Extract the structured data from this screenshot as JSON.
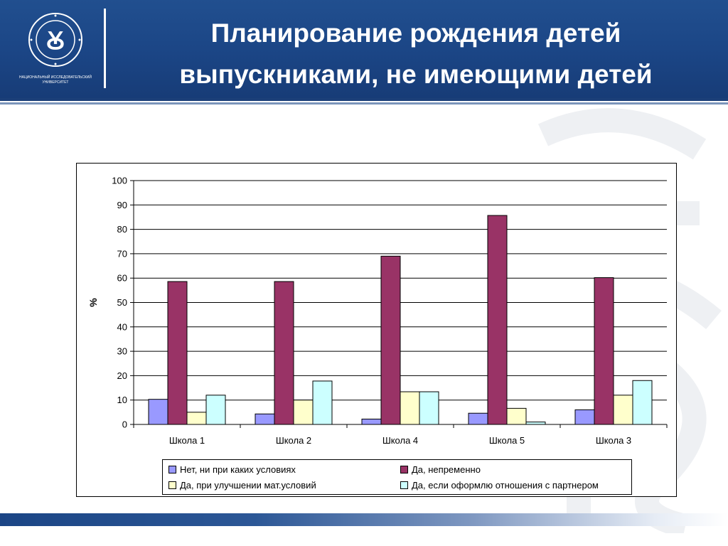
{
  "header": {
    "title_line1": "Планирование рождения детей",
    "title_line2": "выпускниками, не имеющими детей",
    "logo_caption_line1": "НАЦИОНАЛЬНЫЙ ИССЛЕДОВАТЕЛЬСКИЙ",
    "logo_caption_line2": "УНИВЕРСИТЕТ",
    "logo_ring_text": "ВЫСШАЯ ШКОЛА ЭКОНОМИКИ"
  },
  "colors": {
    "header_bg": "#1b4585",
    "series": [
      "#9999ff",
      "#993366",
      "#ffffcc",
      "#ccffff"
    ]
  },
  "chart_data": {
    "type": "bar",
    "title": "",
    "xlabel": "",
    "ylabel": "%",
    "ylim": [
      0,
      100
    ],
    "yticks": [
      0,
      10,
      20,
      30,
      40,
      50,
      60,
      70,
      80,
      90,
      100
    ],
    "grid": true,
    "categories": [
      "Школа 1",
      "Школа 2",
      "Школа 4",
      "Школа 5",
      "Школа 3"
    ],
    "series": [
      {
        "name": "Нет, ни при каких условиях",
        "values": [
          10.3,
          4.3,
          2.2,
          4.6,
          6.0
        ]
      },
      {
        "name": "Да, непременно",
        "values": [
          58.6,
          58.6,
          69.0,
          85.7,
          60.2
        ]
      },
      {
        "name": "Да, при улучшении мат.условий",
        "values": [
          5.0,
          10.0,
          13.4,
          6.6,
          12.0
        ]
      },
      {
        "name": "Да, если оформлю отношения с партнером",
        "values": [
          12.0,
          17.8,
          13.4,
          1.0,
          18.0
        ]
      }
    ],
    "legend_position": "bottom"
  }
}
